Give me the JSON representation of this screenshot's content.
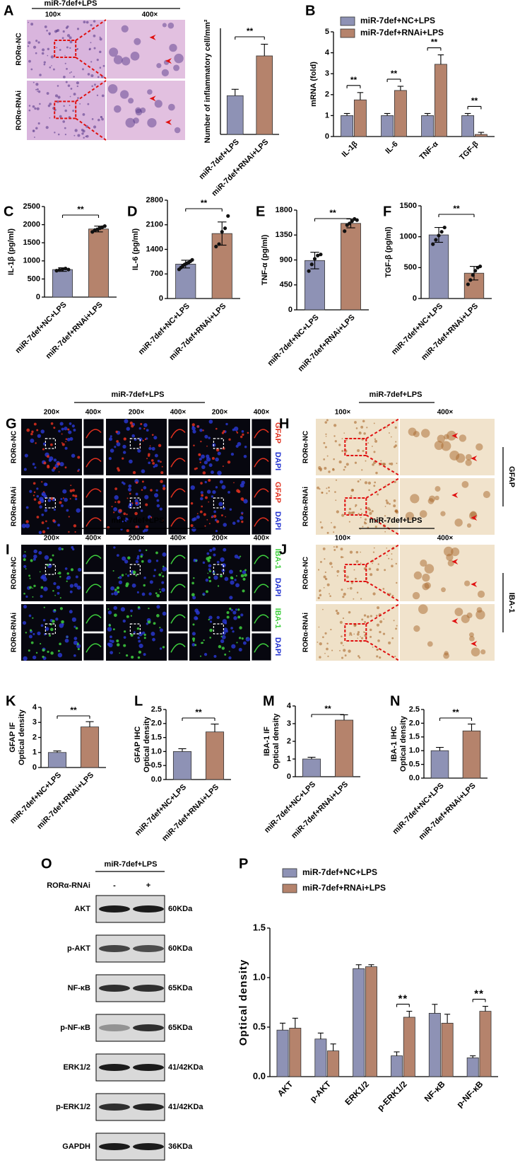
{
  "chart_data": [
    {
      "type": "bar",
      "ylabel": "Number of inflammatory cell/mm²",
      "categories": [
        "miR-7def+LPS",
        "miR-7def+RNAi+LPS"
      ],
      "values": [
        7.3,
        14.8
      ],
      "errors": [
        1.2,
        2.2
      ],
      "colors": [
        "#8e92b5",
        "#b5836c"
      ],
      "ylim": [
        0,
        20
      ],
      "significance": "**"
    },
    {
      "type": "bar",
      "panel_label": "B",
      "ylabel": "mRNA (fold)",
      "categories": [
        "IL-1β",
        "IL-6",
        "TNF-α",
        "TGF-β"
      ],
      "series": [
        {
          "name": "miR-7def+NC+LPS",
          "color": "#8e92b5",
          "values": [
            1,
            1,
            1,
            1
          ],
          "errors": [
            0.1,
            0.1,
            0.1,
            0.1
          ]
        },
        {
          "name": "miR-7def+RNAi+LPS",
          "color": "#b5836c",
          "values": [
            1.75,
            2.2,
            3.45,
            0.1
          ],
          "errors": [
            0.35,
            0.2,
            0.45,
            0.1
          ]
        }
      ],
      "ylim": [
        0,
        5
      ],
      "yticks": [
        0,
        1,
        2,
        3,
        4,
        5
      ],
      "significance": [
        "**",
        "**",
        "**",
        "**"
      ]
    },
    {
      "type": "bar",
      "panel_label": "C",
      "ylabel": "IL-1β (pg/ml)",
      "categories": [
        "miR-7def+NC+LPS",
        "miR-7def+RNAi+LPS"
      ],
      "values": [
        760,
        1880
      ],
      "errors": [
        50,
        80
      ],
      "points": [
        [
          730,
          750,
          770,
          790,
          760
        ],
        [
          1800,
          1850,
          1870,
          1900,
          1930,
          1960
        ]
      ],
      "colors": [
        "#8e92b5",
        "#b5836c"
      ],
      "ylim": [
        0,
        2500
      ],
      "yticks": [
        0,
        500,
        1000,
        1500,
        2000,
        2500
      ],
      "significance": "**"
    },
    {
      "type": "bar",
      "panel_label": "D",
      "ylabel": "IL-6 (pg/ml)",
      "categories": [
        "miR-7def+NC+LPS",
        "miR-7def+RNAi+LPS"
      ],
      "values": [
        980,
        1850
      ],
      "errors": [
        110,
        330
      ],
      "points": [
        [
          830,
          880,
          930,
          970,
          1000,
          1020,
          1060,
          1100
        ],
        [
          1480,
          1550,
          1900,
          2000,
          2350
        ]
      ],
      "colors": [
        "#8e92b5",
        "#b5836c"
      ],
      "ylim": [
        0,
        2800
      ],
      "yticks": [
        0,
        700,
        1400,
        2100,
        2800
      ],
      "significance": "**"
    },
    {
      "type": "bar",
      "panel_label": "E",
      "ylabel": "TNF-α (pg/ml)",
      "categories": [
        "miR-7def+NC+LPS",
        "miR-7def+RNAi+LPS"
      ],
      "values": [
        890,
        1560
      ],
      "errors": [
        150,
        80
      ],
      "points": [
        [
          700,
          820,
          920,
          980,
          1000
        ],
        [
          1420,
          1530,
          1560,
          1600,
          1640,
          1620
        ]
      ],
      "colors": [
        "#8e92b5",
        "#b5836c"
      ],
      "ylim": [
        0,
        1800
      ],
      "yticks": [
        0,
        450,
        900,
        1350,
        1800
      ],
      "significance": "**"
    },
    {
      "type": "bar",
      "panel_label": "F",
      "ylabel": "TGF-β (pg/ml)",
      "categories": [
        "miR-7def+NC+LPS",
        "miR-7def+RNAi+LPS"
      ],
      "values": [
        1030,
        410
      ],
      "errors": [
        120,
        110
      ],
      "points": [
        [
          880,
          950,
          1020,
          1080,
          1150
        ],
        [
          230,
          300,
          380,
          450,
          500,
          520
        ]
      ],
      "colors": [
        "#8e92b5",
        "#b5836c"
      ],
      "ylim": [
        0,
        1500
      ],
      "yticks": [
        0,
        500,
        1000,
        1500
      ],
      "significance": "**"
    },
    {
      "type": "bar",
      "panel_label": "K",
      "ylabel": [
        "GFAP IF",
        "Optical density"
      ],
      "categories": [
        "miR-7def+NC+LPS",
        "miR-7def+RNAi+LPS"
      ],
      "values": [
        1.0,
        2.7
      ],
      "errors": [
        0.1,
        0.35
      ],
      "colors": [
        "#8e92b5",
        "#b5836c"
      ],
      "ylim": [
        0,
        4
      ],
      "yticks": [
        0,
        1,
        2,
        3,
        4
      ],
      "significance": "**"
    },
    {
      "type": "bar",
      "panel_label": "L",
      "ylabel": [
        "GFAP IHC",
        "Optical density"
      ],
      "categories": [
        "miR-7def+NC+LPS",
        "miR-7def+RNAi+LPS"
      ],
      "values": [
        1.0,
        1.7
      ],
      "errors": [
        0.1,
        0.28
      ],
      "colors": [
        "#8e92b5",
        "#b5836c"
      ],
      "ylim": [
        0,
        2.5
      ],
      "yticks": [
        {
          "value": 0,
          "label": "0.0"
        },
        0.5,
        {
          "value": 1,
          "label": "1.0"
        },
        1.5,
        {
          "value": 2,
          "label": "2.0"
        },
        2.5
      ],
      "significance": "**"
    },
    {
      "type": "bar",
      "panel_label": "M",
      "ylabel": [
        "IBA-1 IF",
        "Optical density"
      ],
      "categories": [
        "miR-7def+NC+LPS",
        "miR-7def+RNAi+LPS"
      ],
      "values": [
        1.0,
        3.2
      ],
      "errors": [
        0.1,
        0.3
      ],
      "colors": [
        "#8e92b5",
        "#b5836c"
      ],
      "ylim": [
        0,
        4
      ],
      "yticks": [
        0,
        1,
        2,
        3,
        4
      ],
      "significance": "**"
    },
    {
      "type": "bar",
      "panel_label": "N",
      "ylabel": [
        "IBA-1 IHC",
        "Optical density"
      ],
      "categories": [
        "miR-7def+NC+LPS",
        "miR-7def+RNAi+LPS"
      ],
      "values": [
        1.0,
        1.72
      ],
      "errors": [
        0.12,
        0.25
      ],
      "colors": [
        "#8e92b5",
        "#b5836c"
      ],
      "ylim": [
        0,
        2.5
      ],
      "yticks": [
        {
          "value": 0,
          "label": "0.0"
        },
        0.5,
        {
          "value": 1,
          "label": "1.0"
        },
        1.5,
        {
          "value": 2,
          "label": "2.0"
        },
        2.5
      ],
      "significance": "**"
    },
    {
      "type": "bar",
      "panel_label": "P",
      "ylabel": "Optical density",
      "categories": [
        "AKT",
        "p-AKT",
        "ERK1/2",
        "p-ERK1/2",
        "NF-κB",
        "p-NF-κB"
      ],
      "series": [
        {
          "name": "miR-7def+NC+LPS",
          "color": "#8e92b5",
          "values": [
            0.47,
            0.38,
            1.09,
            0.21,
            0.64,
            0.19
          ],
          "errors": [
            0.07,
            0.06,
            0.04,
            0.04,
            0.09,
            0.02
          ]
        },
        {
          "name": "miR-7def+RNAi+LPS",
          "color": "#b5836c",
          "values": [
            0.49,
            0.26,
            1.11,
            0.6,
            0.54,
            0.66
          ],
          "errors": [
            0.1,
            0.07,
            0.02,
            0.06,
            0.09,
            0.05
          ]
        }
      ],
      "ylim": [
        0,
        1.5
      ],
      "yticks": [
        {
          "value": 0,
          "label": "0.0"
        },
        0.5,
        {
          "value": 1,
          "label": "1.0"
        },
        1.5
      ],
      "significance": [
        null,
        null,
        null,
        "**",
        null,
        "**"
      ]
    }
  ],
  "image_panels": [
    {
      "label": "A",
      "header": "miR-7def+LPS",
      "magnifications": [
        "100×",
        "400×"
      ],
      "rows": [
        "RORα-NC",
        "RORα-RNAi"
      ]
    },
    {
      "label": "G",
      "header": "miR-7def+LPS",
      "magnifications": [
        "200×",
        "400×",
        "200×",
        "400×",
        "200×",
        "400×"
      ],
      "rows": [
        "RORα-NC",
        "RORα-RNAi"
      ],
      "stains": [
        "GFAP",
        "DAPI"
      ]
    },
    {
      "label": "H",
      "header": "miR-7def+LPS",
      "magnifications": [
        "100×",
        "400×"
      ],
      "rows": [
        "RORα-NC",
        "RORα-RNAi"
      ],
      "marker": "GFAP"
    },
    {
      "label": "I",
      "header": "miR-7def+LPS",
      "magnifications": [
        "200×",
        "400×",
        "200×",
        "400×",
        "200×",
        "400×"
      ],
      "rows": [
        "RORα-NC",
        "RORα-RNAi"
      ],
      "stains": [
        "IBA-1",
        "DAPI"
      ]
    },
    {
      "label": "J",
      "header": "miR-7def+LPS",
      "magnifications": [
        "100×",
        "400×"
      ],
      "rows": [
        "RORα-NC",
        "RORα-RNAi"
      ],
      "marker": "IBA-1"
    }
  ],
  "blot": {
    "label": "O",
    "header": "miR-7def+LPS",
    "treatment": "RORα-RNAi",
    "lanes": [
      "-",
      "+"
    ],
    "proteins": [
      "AKT",
      "p-AKT",
      "NF-κB",
      "p-NF-κB",
      "ERK1/2",
      "p-ERK1/2",
      "GAPDH"
    ],
    "sizes": [
      "60KDa",
      "60KDa",
      "65KDa",
      "65KDa",
      "41/42KDa",
      "41/42KDa",
      "36KDa"
    ]
  }
}
